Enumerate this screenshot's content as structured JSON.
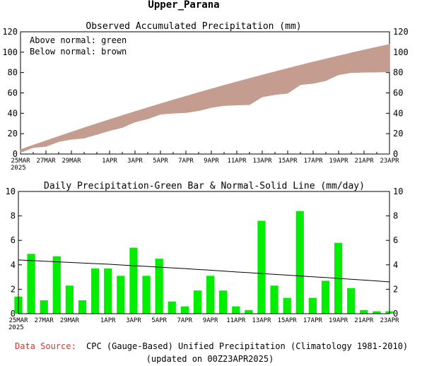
{
  "page_title": "Upper_Parana",
  "footer": {
    "source_label": "Data Source:",
    "source_text": "CPC (Gauge-Based) Unified Precipitation (Climatology 1981-2010)",
    "updated": "(updated on 00Z23APR2025)"
  },
  "colors": {
    "accum_fill": "#c49c90",
    "bar_fill": "#00ee00",
    "normal_line": "#000000",
    "source_label": "#e03030"
  },
  "chart_data": [
    {
      "type": "area",
      "title": "Observed Accumulated Precipitation (mm)",
      "annotations": [
        "Above normal: green",
        "Below normal: brown"
      ],
      "x": [
        "25MAR",
        "26MAR",
        "27MAR",
        "28MAR",
        "29MAR",
        "30MAR",
        "31MAR",
        "1APR",
        "2APR",
        "3APR",
        "4APR",
        "5APR",
        "6APR",
        "7APR",
        "8APR",
        "9APR",
        "10APR",
        "11APR",
        "12APR",
        "13APR",
        "14APR",
        "15APR",
        "16APR",
        "17APR",
        "18APR",
        "19APR",
        "20APR",
        "21APR",
        "22APR",
        "23APR"
      ],
      "x_tick_labels": [
        "25MAR",
        "27MAR",
        "29MAR",
        "1APR",
        "3APR",
        "5APR",
        "7APR",
        "9APR",
        "11APR",
        "13APR",
        "15APR",
        "17APR",
        "19APR",
        "21APR",
        "23APR"
      ],
      "year_label": "2025",
      "ylim": [
        0,
        120
      ],
      "yticks": [
        0,
        20,
        40,
        60,
        80,
        100,
        120
      ],
      "series": [
        {
          "values": [
            1.4,
            6.3,
            7.4,
            12.1,
            14.4,
            15.5,
            19.2,
            22.9,
            26.0,
            31.4,
            34.5,
            39.0,
            40.0,
            40.6,
            42.5,
            45.6,
            47.5,
            48.1,
            48.4,
            56.0,
            58.3,
            59.6,
            68.0,
            69.3,
            72.0,
            77.8,
            79.9,
            80.2,
            80.4,
            80.6
          ]
        },
        {
          "values": [
            4.4,
            8.8,
            13.1,
            17.4,
            21.6,
            25.8,
            29.9,
            33.9,
            37.9,
            41.8,
            45.6,
            49.4,
            53.1,
            56.8,
            60.4,
            64.0,
            67.5,
            70.9,
            74.3,
            77.6,
            80.9,
            84.1,
            87.3,
            90.4,
            93.4,
            96.4,
            99.3,
            102.2,
            105.0,
            107.7
          ]
        }
      ]
    },
    {
      "type": "bar",
      "title": "Daily Precipitation-Green Bar & Normal-Solid Line (mm/day)",
      "x": [
        "25MAR",
        "26MAR",
        "27MAR",
        "28MAR",
        "29MAR",
        "30MAR",
        "31MAR",
        "1APR",
        "2APR",
        "3APR",
        "4APR",
        "5APR",
        "6APR",
        "7APR",
        "8APR",
        "9APR",
        "10APR",
        "11APR",
        "12APR",
        "13APR",
        "14APR",
        "15APR",
        "16APR",
        "17APR",
        "18APR",
        "19APR",
        "20APR",
        "21APR",
        "22APR",
        "23APR"
      ],
      "x_tick_labels": [
        "25MAR",
        "27MAR",
        "29MAR",
        "1APR",
        "3APR",
        "5APR",
        "7APR",
        "9APR",
        "11APR",
        "13APR",
        "15APR",
        "17APR",
        "19APR",
        "21APR",
        "23APR"
      ],
      "year_label": "2025",
      "ylim": [
        0,
        10
      ],
      "yticks": [
        0,
        2,
        4,
        6,
        8,
        10
      ],
      "series": [
        {
          "values": [
            1.4,
            4.9,
            1.1,
            4.7,
            2.3,
            1.1,
            3.7,
            3.7,
            3.1,
            5.4,
            3.1,
            4.5,
            1.0,
            0.6,
            1.9,
            3.1,
            1.9,
            0.6,
            0.3,
            7.6,
            2.3,
            1.3,
            8.4,
            1.3,
            2.7,
            5.8,
            2.1,
            0.3,
            0.2,
            0.2
          ]
        },
        {
          "values": [
            4.4,
            4.35,
            4.3,
            4.25,
            4.2,
            4.15,
            4.1,
            4.05,
            3.99,
            3.93,
            3.87,
            3.81,
            3.75,
            3.69,
            3.62,
            3.56,
            3.49,
            3.42,
            3.36,
            3.29,
            3.22,
            3.16,
            3.09,
            3.02,
            2.96,
            2.89,
            2.82,
            2.75,
            2.68,
            2.6
          ]
        }
      ]
    }
  ]
}
